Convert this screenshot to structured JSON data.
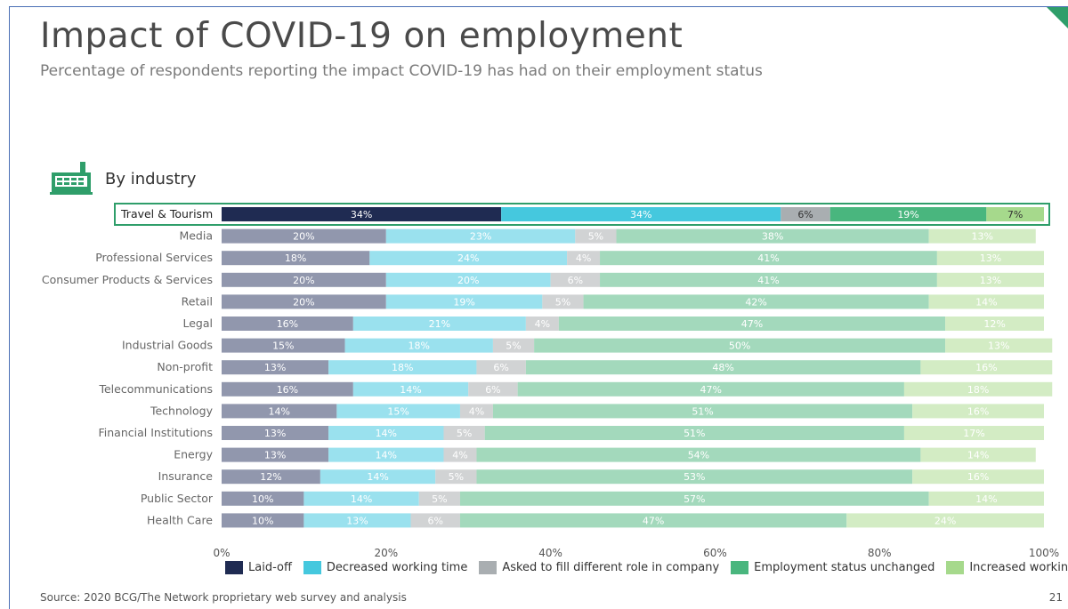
{
  "title": "Impact of COVID-19 on employment",
  "subtitle": "Percentage of respondents reporting the impact COVID-19 has had on their employment status",
  "section_label": "By industry",
  "source": "Source: 2020 BCG/The Network proprietary web survey and analysis",
  "page_number": "21",
  "icons": {
    "section": "factory-icon"
  },
  "colors": {
    "frame": "#4a6fb5",
    "highlight_border": "#2f9e6a",
    "series": [
      "#1f2b52",
      "#45c8de",
      "#a9aeb1",
      "#49b67e",
      "#a6d98c"
    ],
    "series_faded": [
      "#9197ad",
      "#9ae1ee",
      "#d1d3d4",
      "#a3d9bc",
      "#d3ecc4"
    ]
  },
  "chart_data": {
    "type": "bar",
    "orientation": "horizontal",
    "stacked": true,
    "highlighted_category": "Travel & Tourism",
    "categories": [
      "Travel & Tourism",
      "Media",
      "Professional Services",
      "Consumer Products & Services",
      "Retail",
      "Legal",
      "Industrial Goods",
      "Non-profit",
      "Telecommunications",
      "Technology",
      "Financial Institutions",
      "Energy",
      "Insurance",
      "Public Sector",
      "Health Care"
    ],
    "series": [
      {
        "name": "Laid-off",
        "values": [
          34,
          20,
          18,
          20,
          20,
          16,
          15,
          13,
          16,
          14,
          13,
          13,
          12,
          10,
          10
        ]
      },
      {
        "name": "Decreased working time",
        "values": [
          34,
          23,
          24,
          20,
          19,
          21,
          18,
          18,
          14,
          15,
          14,
          14,
          14,
          14,
          13
        ]
      },
      {
        "name": "Asked to fill different role in company",
        "values": [
          6,
          5,
          4,
          6,
          5,
          4,
          5,
          6,
          6,
          4,
          5,
          4,
          5,
          5,
          6
        ]
      },
      {
        "name": "Employment status unchanged",
        "values": [
          19,
          38,
          41,
          41,
          42,
          47,
          50,
          48,
          47,
          51,
          51,
          54,
          53,
          57,
          47
        ]
      },
      {
        "name": "Increased working time",
        "values": [
          7,
          13,
          13,
          13,
          14,
          12,
          13,
          16,
          18,
          16,
          17,
          14,
          16,
          14,
          24
        ]
      }
    ],
    "xlim": [
      0,
      100
    ],
    "x_ticks": [
      "0%",
      "20%",
      "40%",
      "60%",
      "80%",
      "100%"
    ],
    "value_format": "percent",
    "legend_position": "bottom"
  }
}
